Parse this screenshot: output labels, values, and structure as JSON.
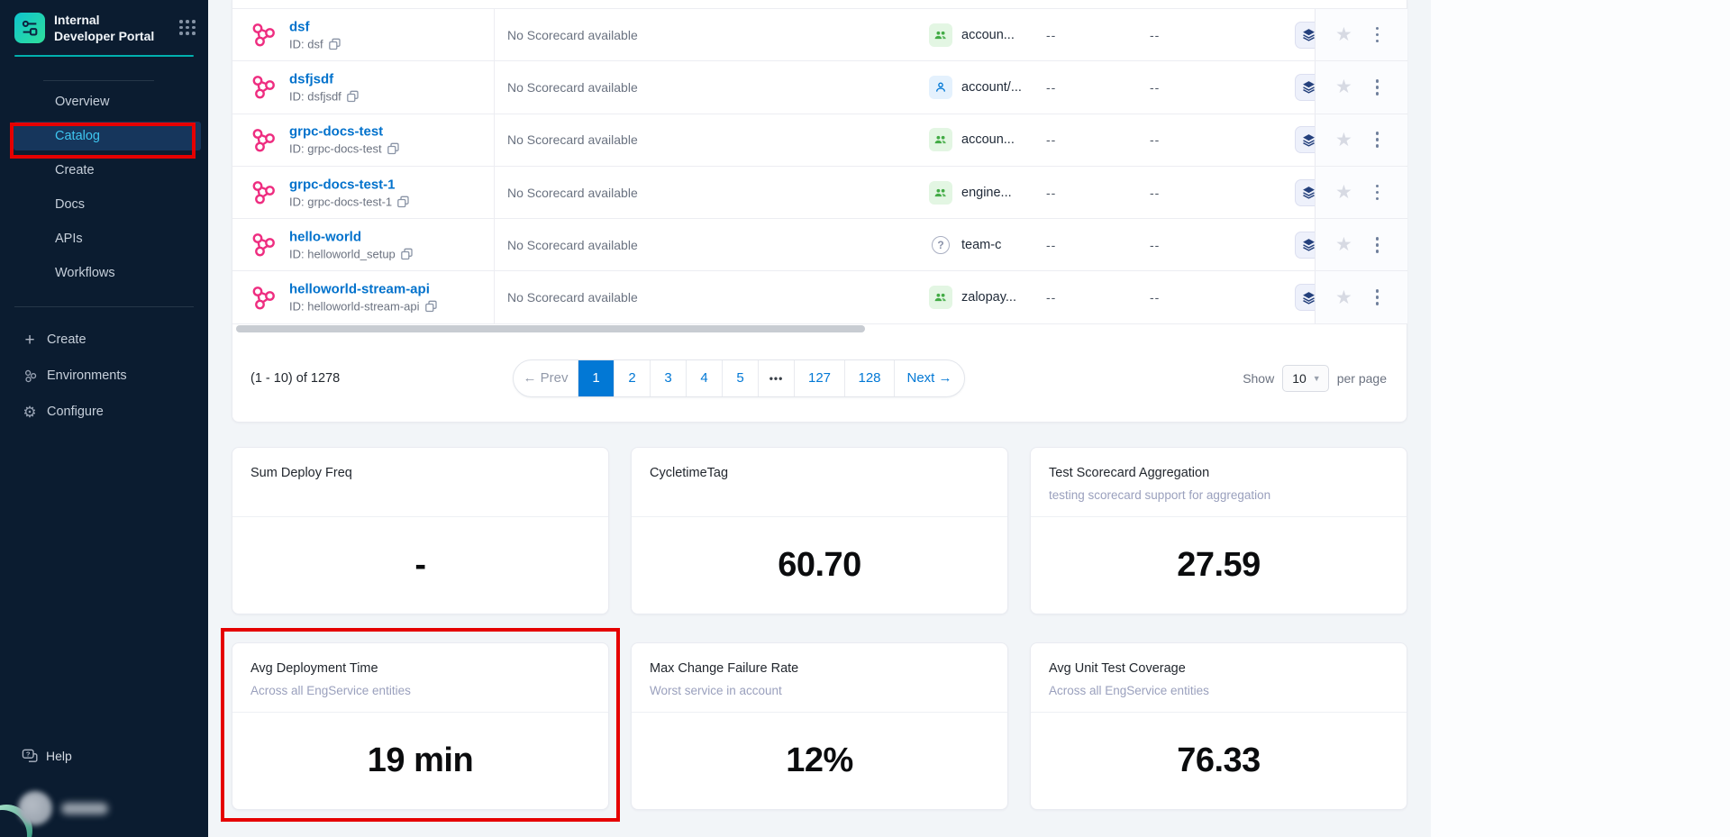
{
  "colors": {
    "accent": "#0278d5",
    "annotation_red": "#e50000",
    "teal_divider": "#01b0ae",
    "sidebar_bg": "#0b1c30",
    "active_nav_bg": "#16365c",
    "active_nav_text": "#3ec6f0",
    "entity_icon_pink": "#ee2d80",
    "owner_group_green": "#42ab45",
    "owner_user_blue": "#0278d5"
  },
  "sidebar": {
    "title": "Internal Developer Portal",
    "nav": [
      {
        "label": "Overview",
        "active": false
      },
      {
        "label": "Catalog",
        "active": true
      },
      {
        "label": "Create",
        "active": false
      },
      {
        "label": "Docs",
        "active": false
      },
      {
        "label": "APIs",
        "active": false
      },
      {
        "label": "Workflows",
        "active": false
      }
    ],
    "secondary": [
      {
        "label": "Create",
        "icon": "plus-icon"
      },
      {
        "label": "Environments",
        "icon": "environments-icon"
      },
      {
        "label": "Configure",
        "icon": "gear-icon"
      }
    ],
    "help_label": "Help"
  },
  "table": {
    "rows": [
      {
        "name": "dsf",
        "id": "ID: dsf",
        "scorecard": "No Scorecard available",
        "owner": "accoun...",
        "owner_type": "group",
        "col1": "--",
        "col2": "--"
      },
      {
        "name": "dsfjsdf",
        "id": "ID: dsfjsdf",
        "scorecard": "No Scorecard available",
        "owner": "account/...",
        "owner_type": "user",
        "col1": "--",
        "col2": "--"
      },
      {
        "name": "grpc-docs-test",
        "id": "ID: grpc-docs-test",
        "scorecard": "No Scorecard available",
        "owner": "accoun...",
        "owner_type": "group",
        "col1": "--",
        "col2": "--"
      },
      {
        "name": "grpc-docs-test-1",
        "id": "ID: grpc-docs-test-1",
        "scorecard": "No Scorecard available",
        "owner": "engine...",
        "owner_type": "group",
        "col1": "--",
        "col2": "--"
      },
      {
        "name": "hello-world",
        "id": "ID: helloworld_setup",
        "scorecard": "No Scorecard available",
        "owner": "team-c",
        "owner_type": "unknown",
        "col1": "--",
        "col2": "--"
      },
      {
        "name": "helloworld-stream-api",
        "id": "ID: helloworld-stream-api",
        "scorecard": "No Scorecard available",
        "owner": "zalopay...",
        "owner_type": "group",
        "col1": "--",
        "col2": "--"
      }
    ]
  },
  "pagination": {
    "range_text": "(1 - 10) of 1278",
    "prev_label": "← Prev",
    "pages": [
      "1",
      "2",
      "3",
      "4",
      "5",
      "•••",
      "127",
      "128"
    ],
    "active_page": "1",
    "next_label": "Next →",
    "show_label": "Show",
    "page_size": "10",
    "per_page_label": "per page"
  },
  "metrics": [
    {
      "title": "Sum Deploy Freq",
      "subtitle": "",
      "value": "-",
      "annotated": false
    },
    {
      "title": "CycletimeTag",
      "subtitle": "",
      "value": "60.70",
      "annotated": false
    },
    {
      "title": "Test Scorecard Aggregation",
      "subtitle": "testing scorecard support for aggregation",
      "value": "27.59",
      "annotated": false
    },
    {
      "title": "Avg Deployment Time",
      "subtitle": "Across all EngService entities",
      "value": "19 min",
      "annotated": true
    },
    {
      "title": "Max Change Failure Rate",
      "subtitle": "Worst service in account",
      "value": "12%",
      "annotated": false
    },
    {
      "title": "Avg Unit Test Coverage",
      "subtitle": "Across all EngService entities",
      "value": "76.33",
      "annotated": false
    }
  ]
}
